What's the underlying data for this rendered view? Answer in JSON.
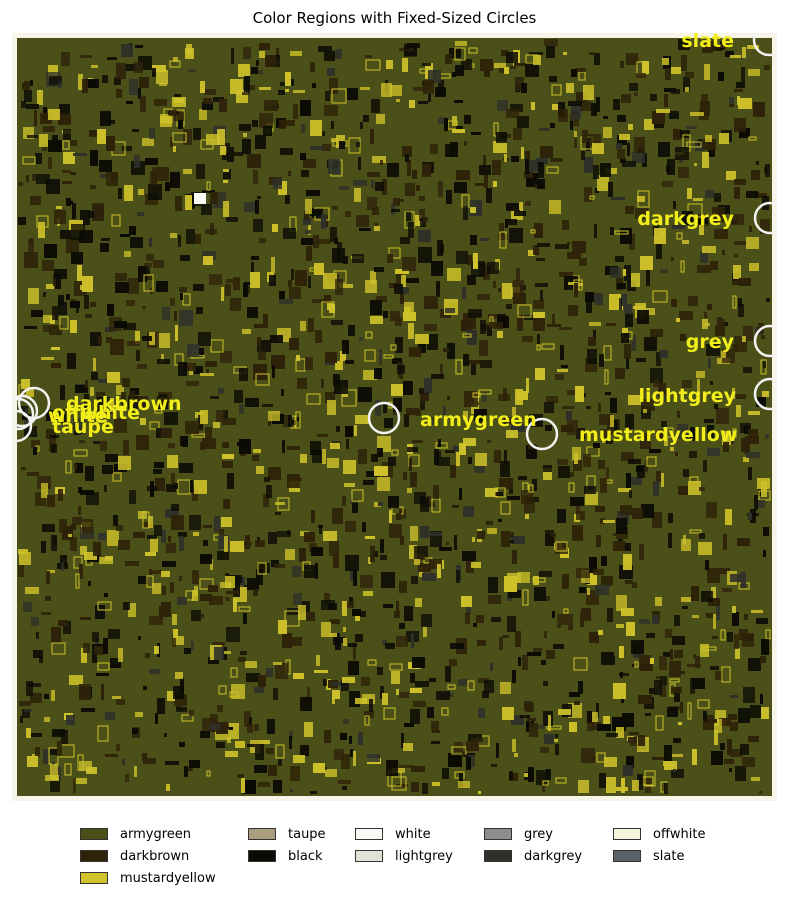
{
  "chart_data": {
    "type": "heatmap",
    "title": "Color Regions with Fixed-Sized Circles",
    "xlabel": "",
    "ylabel": "",
    "axes_visible": false,
    "grid": false,
    "background_region": "armygreen",
    "legend_position": "bottom",
    "legend": [
      {
        "name": "armygreen",
        "color": "#4b5018"
      },
      {
        "name": "darkbrown",
        "color": "#2e2209"
      },
      {
        "name": "mustardyellow",
        "color": "#cfc22a"
      },
      {
        "name": "taupe",
        "color": "#ab9f80"
      },
      {
        "name": "black",
        "color": "#0b0b05"
      },
      {
        "name": "white",
        "color": "#fafaf5"
      },
      {
        "name": "lightgrey",
        "color": "#e1e1d7"
      },
      {
        "name": "grey",
        "color": "#8d8d8d"
      },
      {
        "name": "darkgrey",
        "color": "#2e302a"
      },
      {
        "name": "offwhite",
        "color": "#f5f5dc"
      },
      {
        "name": "slate",
        "color": "#596066"
      }
    ],
    "annotations": [
      {
        "label": "slate"
      },
      {
        "label": "darkgrey"
      },
      {
        "label": "grey"
      },
      {
        "label": "lightgrey"
      },
      {
        "label": "darkbrown"
      },
      {
        "label": "white"
      },
      {
        "label": "offwhite"
      },
      {
        "label": "taupe"
      },
      {
        "label": "armygreen"
      },
      {
        "label": "mustardyellow"
      }
    ],
    "annotation_color": "#f2ee1a",
    "circle_color": "#f3f3f3"
  }
}
